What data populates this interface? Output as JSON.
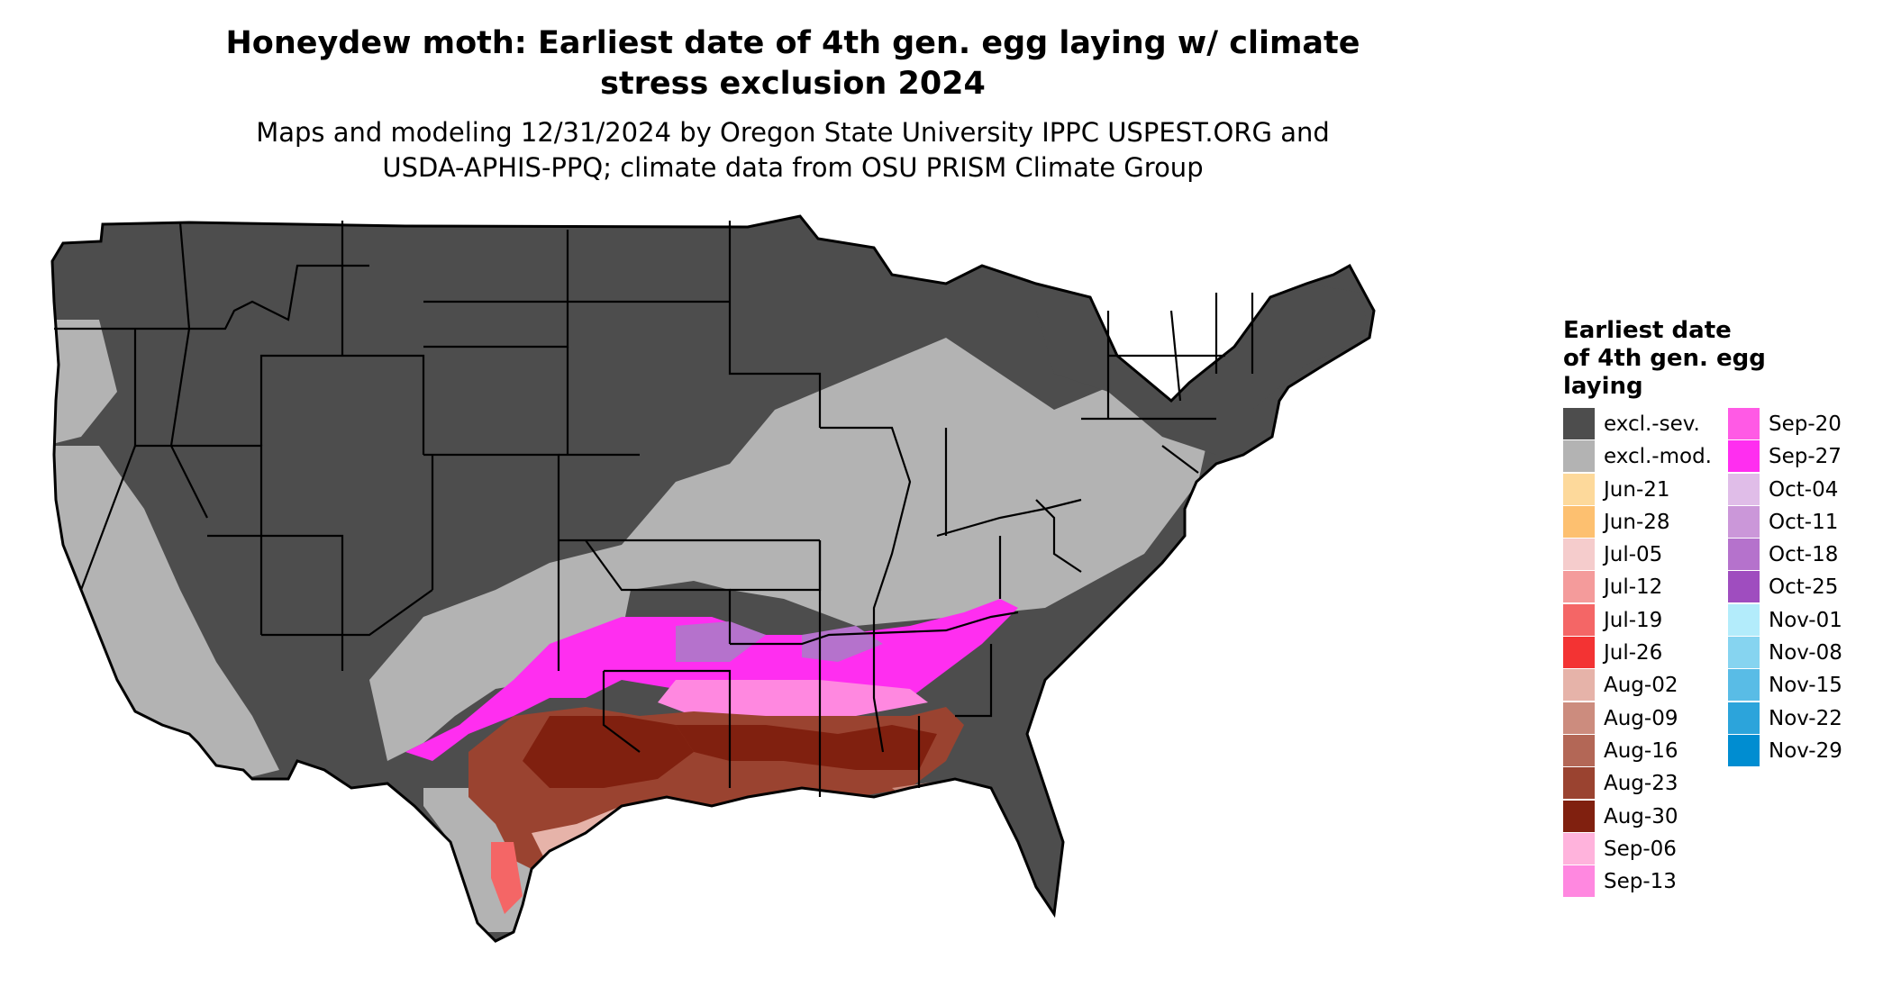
{
  "title_lines": [
    "Honeydew moth: Earliest date of 4th gen. egg laying w/ climate",
    "stress exclusion 2024"
  ],
  "subtitle_lines": [
    "Maps and modeling 12/31/2024 by Oregon State University IPPC USPEST.ORG and",
    "USDA-APHIS-PPQ; climate data from OSU PRISM Climate Group"
  ],
  "legend": {
    "title_lines": [
      "Earliest date",
      "of 4th gen. egg",
      "laying"
    ],
    "items": [
      {
        "label": "excl.-sev.",
        "color": "#4d4d4d"
      },
      {
        "label": "excl.-mod.",
        "color": "#b3b3b3"
      },
      {
        "label": "Jun-21",
        "color": "#fdd99b"
      },
      {
        "label": "Jun-28",
        "color": "#fdc070"
      },
      {
        "label": "Jul-05",
        "color": "#f5cccc"
      },
      {
        "label": "Jul-12",
        "color": "#f49b9b"
      },
      {
        "label": "Jul-19",
        "color": "#f46666"
      },
      {
        "label": "Jul-26",
        "color": "#f33333"
      },
      {
        "label": "Aug-02",
        "color": "#e6b3a9"
      },
      {
        "label": "Aug-09",
        "color": "#cc8c7e"
      },
      {
        "label": "Aug-16",
        "color": "#b36756"
      },
      {
        "label": "Aug-23",
        "color": "#9a4330"
      },
      {
        "label": "Aug-30",
        "color": "#80200f"
      },
      {
        "label": "Sep-06",
        "color": "#ffb3dc"
      },
      {
        "label": "Sep-13",
        "color": "#ff88e0"
      },
      {
        "label": "Sep-20",
        "color": "#ff5ae5"
      },
      {
        "label": "Sep-27",
        "color": "#ff2ef0"
      },
      {
        "label": "Oct-04",
        "color": "#e0bde8"
      },
      {
        "label": "Oct-11",
        "color": "#cb97d9"
      },
      {
        "label": "Oct-18",
        "color": "#b572cc"
      },
      {
        "label": "Oct-25",
        "color": "#9f4dbf"
      },
      {
        "label": "Nov-01",
        "color": "#b3ecfb"
      },
      {
        "label": "Nov-08",
        "color": "#86d4f0"
      },
      {
        "label": "Nov-15",
        "color": "#59bce6"
      },
      {
        "label": "Nov-22",
        "color": "#2ca4db"
      },
      {
        "label": "Nov-29",
        "color": "#008dd1"
      }
    ]
  },
  "map": {
    "region": "contiguous United States",
    "regions": [
      {
        "name": "western-exclusion-severe",
        "color": "#4d4d4d"
      },
      {
        "name": "plains-exclusion-severe",
        "color": "#4d4d4d"
      },
      {
        "name": "northern-exclusion-severe",
        "color": "#4d4d4d"
      },
      {
        "name": "northeast-exclusion-severe",
        "color": "#4d4d4d"
      },
      {
        "name": "pacific-exclusion-moderate",
        "color": "#b3b3b3"
      },
      {
        "name": "california-exclusion-moderate",
        "color": "#b3b3b3"
      },
      {
        "name": "midwest-exclusion-moderate",
        "color": "#b3b3b3"
      },
      {
        "name": "south-texas-exclusion-moderate",
        "color": "#b3b3b3"
      },
      {
        "name": "southern-belt-sep-27",
        "color": "#ff2ef0"
      },
      {
        "name": "southern-belt-sep-13",
        "color": "#ff88e0"
      },
      {
        "name": "southern-belt-oct-18",
        "color": "#b572cc"
      },
      {
        "name": "gulf-aug-23",
        "color": "#9a4330"
      },
      {
        "name": "gulf-aug-30",
        "color": "#80200f"
      },
      {
        "name": "gulf-aug-16",
        "color": "#b36756"
      },
      {
        "name": "gulf-coast-aug-02",
        "color": "#e6b3a9"
      },
      {
        "name": "florida-aug-09",
        "color": "#cc8c7e"
      },
      {
        "name": "florida-jul-26",
        "color": "#f33333"
      },
      {
        "name": "florida-jul-19",
        "color": "#f46666"
      },
      {
        "name": "south-texas-jul-19",
        "color": "#f46666"
      },
      {
        "name": "keys-jun-21",
        "color": "#fdd99b"
      }
    ]
  }
}
